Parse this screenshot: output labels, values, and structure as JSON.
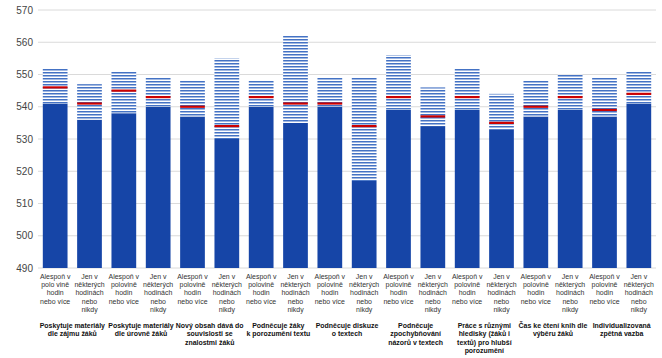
{
  "chart_data": {
    "type": "bar",
    "categories": [
      "Alespoň v\npolo vině\nhodin\nnebo více",
      "Jen v\nněkterých\nhodinách\nnebo\nnikdy",
      "Alespoň v\npolovině\nhodin\nnebo více",
      "Jen v\nněkterých\nhodinách\nnebo\nnikdy",
      "Alespoň v\npolovině\nhodin\nnebo více",
      "Jen v\nněkterých\nhodinách\nnebo\nnikdy",
      "Alespoň v\npolovině\nhodin\nnebo více",
      "Jen v\nněkterých\nhodinách\nnebo\nnikdy",
      "Alespoň v\npolovině\nhodin\nnebo více",
      "Jen v\nněkterých\nhodinách\nnebo\nnikdy",
      "Alespoň v\npolovině\nhodin\nnebo více",
      "Jen v\nněkterých\nhodinách\nnebo\nnikdy",
      "Alespoň v\npolovině\nhodin\nnebo více",
      "Jen v\nněkterých\nhodinách\nnebo\nnikdy",
      "Alespoň v\npolovině\nhodin\nnebo více",
      "Jen v\nněkterých\nhodinách\nnebo\nnikdy",
      "Alespoň v\npolovině\nhodin\nnebo více",
      "Jen v\nněkterých\nhodinách\nnebo\nnikdy"
    ],
    "group_labels": [
      "Poskytuje materiály\ndle zájmu žáků",
      "Poskytuje materiály\ndle úrovně žáků",
      "Nový obsah dává do\nsouvislosti se\nznalostmi žáků",
      "Podněcuje žáky\nk porozumění textu",
      "Podněcuje diskuze\no textech",
      "Podněcuje\nzpochybňování\nnázorů v textech",
      "Práce s různými\nhledisky (žáků i\ntextů) pro hlubší\nporozumění",
      "Čas ke čtení knih dle\nvýběru žáků",
      "Individualizovaná\nzpětná vazba"
    ],
    "values": [
      546,
      541,
      545,
      543,
      540,
      534,
      543,
      541,
      541,
      534,
      543,
      537,
      543,
      535,
      540,
      543,
      539,
      544
    ],
    "ci_lower": [
      541,
      536,
      538,
      540,
      537,
      530,
      540,
      535,
      540,
      517,
      539,
      534,
      539,
      533,
      537,
      539,
      537,
      541
    ],
    "ci_upper": [
      552,
      547,
      551,
      549,
      548,
      555,
      548,
      562,
      549,
      549,
      556,
      546,
      552,
      544,
      548,
      550,
      549,
      551
    ],
    "color": "#1645a7",
    "ylim": [
      490,
      570
    ],
    "yticks": [
      490,
      500,
      510,
      520,
      530,
      540,
      550,
      560,
      570
    ],
    "grid": true
  }
}
